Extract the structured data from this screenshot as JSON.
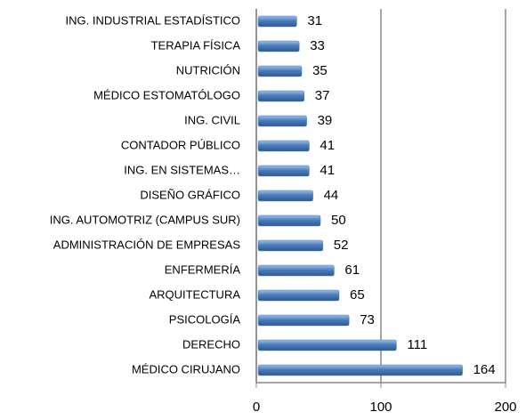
{
  "chart_data": {
    "type": "bar",
    "orientation": "horizontal",
    "categories": [
      "ING. INDUSTRIAL ESTADÍSTICO",
      "TERAPIA FÍSICA",
      "NUTRICIÓN",
      "MÉDICO ESTOMATÓLOGO",
      "ING. CIVIL",
      "CONTADOR PÚBLICO",
      "ING. EN SISTEMAS…",
      "DISEÑO GRÁFICO",
      "ING. AUTOMOTRIZ (CAMPUS SUR)",
      "ADMINISTRACIÓN DE EMPRESAS",
      "ENFERMERÍA",
      "ARQUITECTURA",
      "PSICOLOGÍA",
      "DERECHO",
      "MÉDICO CIRUJANO"
    ],
    "values": [
      31,
      33,
      35,
      37,
      39,
      41,
      41,
      44,
      50,
      52,
      61,
      65,
      73,
      111,
      164
    ],
    "color": "#4a7ebb",
    "xlim": [
      0,
      200
    ],
    "xticks": [
      0,
      100,
      200
    ],
    "grid": true
  }
}
